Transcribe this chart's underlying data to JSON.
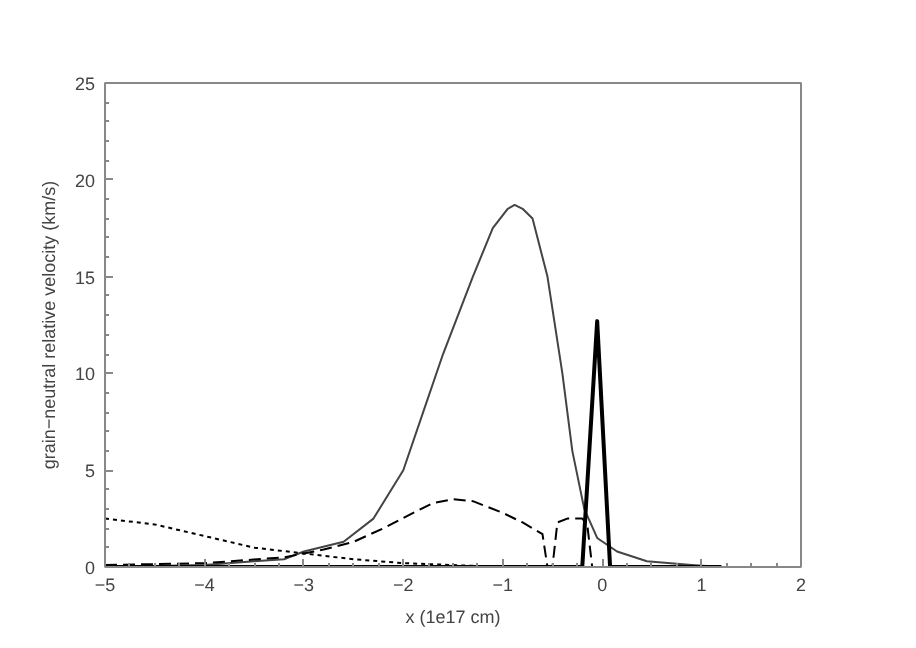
{
  "chart_data": {
    "type": "line",
    "xlabel": "x (1e17 cm)",
    "ylabel": "grain−neutral relative velocity (km/s)",
    "xlim": [
      -5,
      2
    ],
    "ylim": [
      0,
      25
    ],
    "xticks": [
      -5,
      -4,
      -3,
      -2,
      -1,
      0,
      1,
      2
    ],
    "yticks": [
      0,
      5,
      10,
      15,
      20,
      25
    ],
    "grid": false,
    "marker": "none",
    "series": [
      {
        "color": "#444444",
        "line_style": "solid",
        "x": [
          -5,
          -4,
          -3.5,
          -3.2,
          -3,
          -2.6,
          -2.3,
          -2,
          -1.8,
          -1.6,
          -1.3,
          -1.1,
          -0.95,
          -0.88,
          -0.8,
          -0.7,
          -0.55,
          -0.4,
          -0.3,
          -0.18,
          -0.05,
          0.15,
          0.45,
          0.9,
          1.2
        ],
        "values": [
          0,
          0.1,
          0.3,
          0.4,
          0.8,
          1.3,
          2.5,
          5,
          8,
          11,
          15,
          17.5,
          18.5,
          18.7,
          18.5,
          18,
          15,
          10,
          6,
          3,
          1.5,
          0.8,
          0.3,
          0.1,
          0
        ]
      },
      {
        "color": "#000000",
        "line_style": "dashed",
        "x": [
          -5,
          -4,
          -3.2,
          -2.8,
          -2.5,
          -2.2,
          -1.9,
          -1.7,
          -1.5,
          -1.3,
          -1,
          -0.8,
          -0.6,
          -0.55,
          -0.5,
          -0.45,
          -0.35,
          -0.2,
          -0.15,
          -0.1,
          0,
          1.2
        ],
        "values": [
          0.1,
          0.2,
          0.5,
          0.9,
          1.3,
          2,
          2.8,
          3.3,
          3.5,
          3.4,
          2.8,
          2.3,
          1.7,
          0,
          0,
          2.3,
          2.5,
          2.5,
          2.2,
          0,
          0,
          0
        ]
      },
      {
        "color": "#000000",
        "line_style": "dotted",
        "x": [
          -5,
          -4.5,
          -4,
          -3.5,
          -3,
          -2.5,
          -2,
          -1.5,
          -1,
          0,
          1
        ],
        "values": [
          2.5,
          2.2,
          1.6,
          1.0,
          0.7,
          0.4,
          0.2,
          0.1,
          0,
          0,
          0
        ]
      },
      {
        "color": "#000000",
        "line_style": "solid",
        "x": [
          -5,
          -0.2,
          -0.05,
          0.08,
          1.2
        ],
        "values": [
          0,
          0,
          12.7,
          0,
          0
        ]
      }
    ]
  }
}
